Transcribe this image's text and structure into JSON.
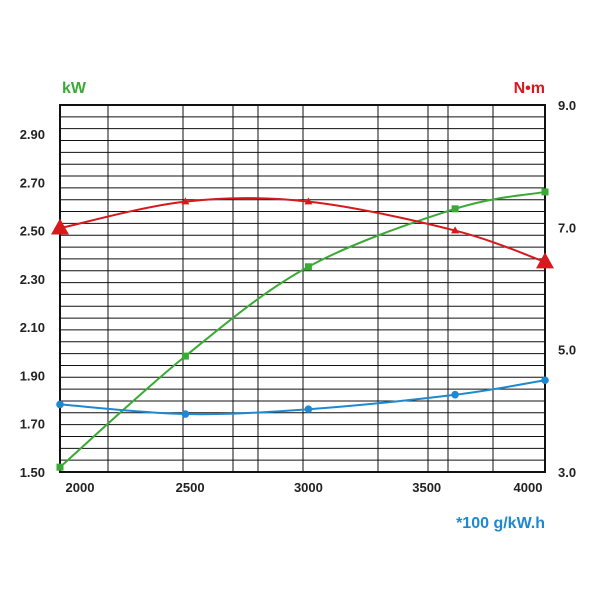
{
  "chart_data": {
    "type": "line",
    "x_ticks": [
      "2000",
      "2500",
      "3000",
      "3500",
      "4000"
    ],
    "x_tick_values": [
      2000,
      2500,
      3000,
      3500,
      4000
    ],
    "xlim": [
      1950,
      4000
    ],
    "left_axis": {
      "label": "kW",
      "ticks": [
        "1.50",
        "1.70",
        "1.90",
        "2.10",
        "2.30",
        "2.50",
        "2.70",
        "2.90"
      ],
      "ylim": [
        1.5,
        3.02
      ]
    },
    "right_axis": {
      "label": "N•m",
      "ticks": [
        "3.0",
        "5.0",
        "7.0",
        "9.0"
      ],
      "ylim": [
        3.0,
        9.0
      ]
    },
    "bottom_label": "*100 g/kW.h",
    "grid": true,
    "series": [
      {
        "key": "power",
        "axis": "left",
        "color": "#3aaa35",
        "marker": "square",
        "x": [
          1950,
          2480,
          3000,
          3620,
          4000
        ],
        "y": [
          1.52,
          1.98,
          2.35,
          2.59,
          2.66
        ]
      },
      {
        "key": "torque",
        "axis": "left",
        "color": "#d7191c",
        "marker": "triangle",
        "x": [
          1950,
          2480,
          3000,
          3620,
          4000
        ],
        "y": [
          2.51,
          2.62,
          2.62,
          2.5,
          2.37
        ]
      },
      {
        "key": "fuel",
        "axis": "left",
        "color": "#1e88d0",
        "marker": "circle",
        "x": [
          1950,
          2480,
          3000,
          3620,
          4000
        ],
        "y": [
          1.78,
          1.74,
          1.76,
          1.82,
          1.88
        ]
      }
    ]
  },
  "colors": {
    "kw_label": "#3aaa35",
    "nm_label": "#d7191c",
    "bottom_label": "#1e88d0",
    "grid": "#111111"
  }
}
